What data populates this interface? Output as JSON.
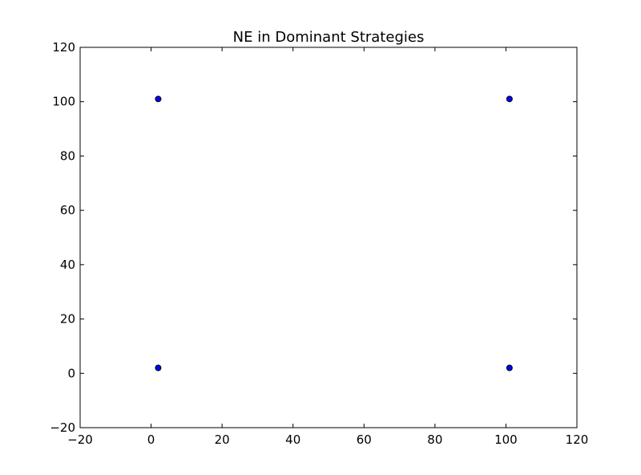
{
  "chart_data": {
    "type": "scatter",
    "title": "NE in Dominant Strategies",
    "xlabel": "",
    "ylabel": "",
    "xlim": [
      -20,
      120
    ],
    "ylim": [
      -20,
      120
    ],
    "xticks": [
      -20,
      0,
      20,
      40,
      60,
      80,
      100,
      120
    ],
    "yticks": [
      -20,
      0,
      20,
      40,
      60,
      80,
      100,
      120
    ],
    "xtick_labels": [
      "−20",
      "0",
      "20",
      "40",
      "60",
      "80",
      "100",
      "120"
    ],
    "ytick_labels": [
      "−20",
      "0",
      "20",
      "40",
      "60",
      "80",
      "100",
      "120"
    ],
    "grid": false,
    "points": [
      {
        "x": 2,
        "y": 101
      },
      {
        "x": 101,
        "y": 101
      },
      {
        "x": 2,
        "y": 2
      },
      {
        "x": 101,
        "y": 2
      }
    ],
    "marker_color": "#0000ff"
  }
}
